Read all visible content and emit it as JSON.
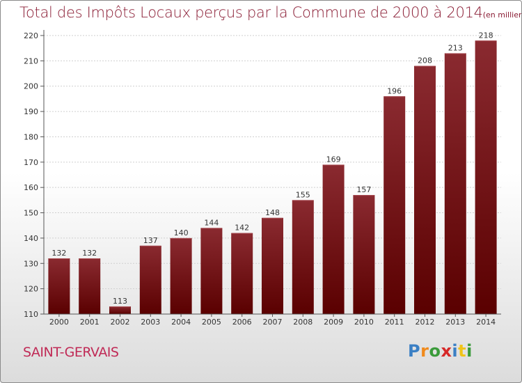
{
  "chart_data": {
    "type": "bar",
    "title": "Total des Impôts Locaux perçus par la Commune de 2000 à 2014",
    "unit_label": "(en milliers d'€)",
    "categories": [
      "2000",
      "2001",
      "2002",
      "2003",
      "2004",
      "2005",
      "2006",
      "2007",
      "2008",
      "2009",
      "2010",
      "2011",
      "2012",
      "2013",
      "2014"
    ],
    "values": [
      132,
      132,
      113,
      137,
      140,
      144,
      142,
      148,
      155,
      169,
      157,
      196,
      208,
      213,
      218
    ],
    "ylim": [
      110,
      220
    ],
    "yticks": [
      110,
      120,
      130,
      140,
      150,
      160,
      170,
      180,
      190,
      200,
      210,
      220
    ],
    "xlabel": "",
    "ylabel": "",
    "bar_color": "#6e0f14"
  },
  "commune": "SAINT-GERVAIS",
  "logo": {
    "text": "Proxiti",
    "colors": [
      "#3a7fc4",
      "#f08a1c",
      "#3a9b3a",
      "#d62828",
      "#3a7fc4",
      "#f0c419",
      "#3a9b3a"
    ]
  }
}
